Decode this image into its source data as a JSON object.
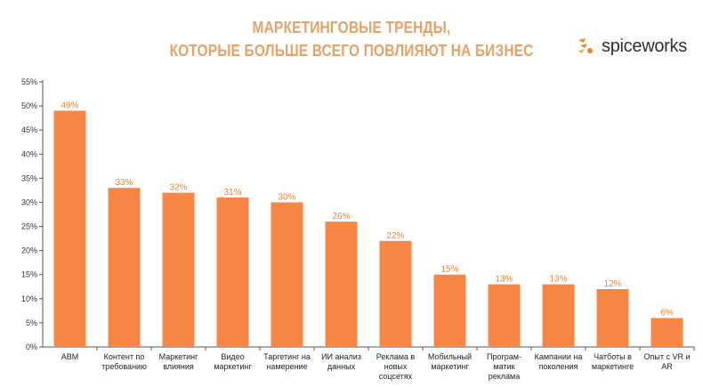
{
  "logo": {
    "text": "spiceworks",
    "icon": "spiceworks-logo-icon"
  },
  "colors": {
    "bar": "#f78543",
    "title": "#e5a268",
    "label": "#f08236",
    "grid": "#dddddd"
  },
  "chart_data": {
    "type": "bar",
    "title_lines": [
      "МАРКЕТИНГОВЫЕ ТРЕНДЫ,",
      "КОТОРЫЕ БОЛЬШЕ ВСЕГО ПОВЛИЯЮТ НА БИЗНЕС"
    ],
    "categories": [
      [
        "ABM"
      ],
      [
        "Контент по",
        "требованию"
      ],
      [
        "Маркетинг",
        "влияния"
      ],
      [
        "Видео",
        "маркетинг"
      ],
      [
        "Таргетинг на",
        "намерение"
      ],
      [
        "ИИ анализ",
        "данных"
      ],
      [
        "Реклама в",
        "новых",
        "соцсетях"
      ],
      [
        "Мобильный",
        "маркетинг"
      ],
      [
        "Програм-",
        "матик",
        "реклама"
      ],
      [
        "Кампании на",
        "поколения"
      ],
      [
        "Чатботы в",
        "маркетинге"
      ],
      [
        "Опыт с VR и",
        "AR"
      ]
    ],
    "values": [
      49,
      33,
      32,
      31,
      30,
      26,
      22,
      15,
      13,
      13,
      12,
      6
    ],
    "value_labels": [
      "49%",
      "33%",
      "32%",
      "31%",
      "30%",
      "26%",
      "22%",
      "15%",
      "13%",
      "13%",
      "12%",
      "6%"
    ],
    "yticks": [
      "0%",
      "5%",
      "10%",
      "15%",
      "20%",
      "25%",
      "30%",
      "35%",
      "40%",
      "45%",
      "50%",
      "55%"
    ],
    "ylim": [
      0,
      55
    ],
    "grid": false
  }
}
